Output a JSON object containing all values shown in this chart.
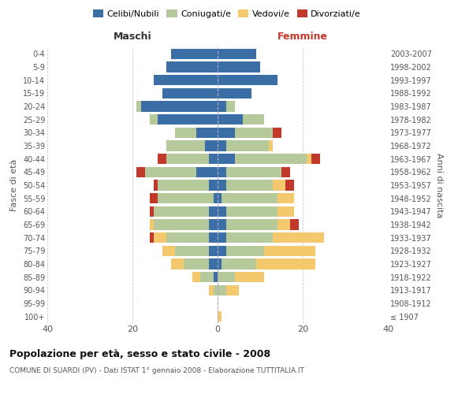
{
  "age_groups": [
    "100+",
    "95-99",
    "90-94",
    "85-89",
    "80-84",
    "75-79",
    "70-74",
    "65-69",
    "60-64",
    "55-59",
    "50-54",
    "45-49",
    "40-44",
    "35-39",
    "30-34",
    "25-29",
    "20-24",
    "15-19",
    "10-14",
    "5-9",
    "0-4"
  ],
  "birth_years": [
    "≤ 1907",
    "1908-1912",
    "1913-1917",
    "1918-1922",
    "1923-1927",
    "1928-1932",
    "1933-1937",
    "1938-1942",
    "1943-1947",
    "1948-1952",
    "1953-1957",
    "1958-1962",
    "1963-1967",
    "1968-1972",
    "1973-1977",
    "1978-1982",
    "1983-1987",
    "1988-1992",
    "1993-1997",
    "1998-2002",
    "2003-2007"
  ],
  "maschi": {
    "celibe": [
      0,
      0,
      0,
      1,
      2,
      2,
      2,
      2,
      2,
      1,
      2,
      5,
      2,
      3,
      5,
      14,
      18,
      13,
      15,
      12,
      11
    ],
    "coniugato": [
      0,
      0,
      1,
      3,
      6,
      8,
      10,
      13,
      13,
      13,
      12,
      12,
      10,
      9,
      5,
      2,
      1,
      0,
      0,
      0,
      0
    ],
    "vedovo": [
      0,
      0,
      1,
      2,
      3,
      3,
      3,
      1,
      0,
      0,
      0,
      0,
      0,
      0,
      0,
      0,
      0,
      0,
      0,
      0,
      0
    ],
    "divorziato": [
      0,
      0,
      0,
      0,
      0,
      0,
      1,
      0,
      1,
      2,
      1,
      2,
      2,
      0,
      0,
      0,
      0,
      0,
      0,
      0,
      0
    ]
  },
  "femmine": {
    "nubile": [
      0,
      0,
      0,
      0,
      1,
      2,
      2,
      2,
      2,
      1,
      2,
      2,
      4,
      2,
      4,
      6,
      2,
      8,
      14,
      10,
      9
    ],
    "coniugata": [
      0,
      0,
      2,
      4,
      8,
      9,
      11,
      12,
      12,
      13,
      11,
      13,
      17,
      10,
      9,
      5,
      2,
      0,
      0,
      0,
      0
    ],
    "vedova": [
      1,
      0,
      3,
      7,
      14,
      12,
      12,
      3,
      4,
      4,
      3,
      0,
      1,
      1,
      0,
      0,
      0,
      0,
      0,
      0,
      0
    ],
    "divorziata": [
      0,
      0,
      0,
      0,
      0,
      0,
      0,
      2,
      0,
      0,
      2,
      2,
      2,
      0,
      2,
      0,
      0,
      0,
      0,
      0,
      0
    ]
  },
  "colors": {
    "celibe": "#3A6EA5",
    "coniugato": "#B5C99A",
    "vedovo": "#F4C86C",
    "divorziato": "#C0392B"
  },
  "legend_labels": [
    "Celibi/Nubili",
    "Coniugati/e",
    "Vedovi/e",
    "Divorziati/e"
  ],
  "title": "Popolazione per età, sesso e stato civile - 2008",
  "subtitle": "COMUNE DI SUARDI (PV) - Dati ISTAT 1° gennaio 2008 - Elaborazione TUTTITALIA.IT",
  "ylabel": "Fasce di età",
  "ylabel_right": "Anni di nascita",
  "xlabel_left": "Maschi",
  "xlabel_right": "Femmine",
  "xlim": 40,
  "background_color": "#FFFFFF",
  "bar_height": 0.8
}
